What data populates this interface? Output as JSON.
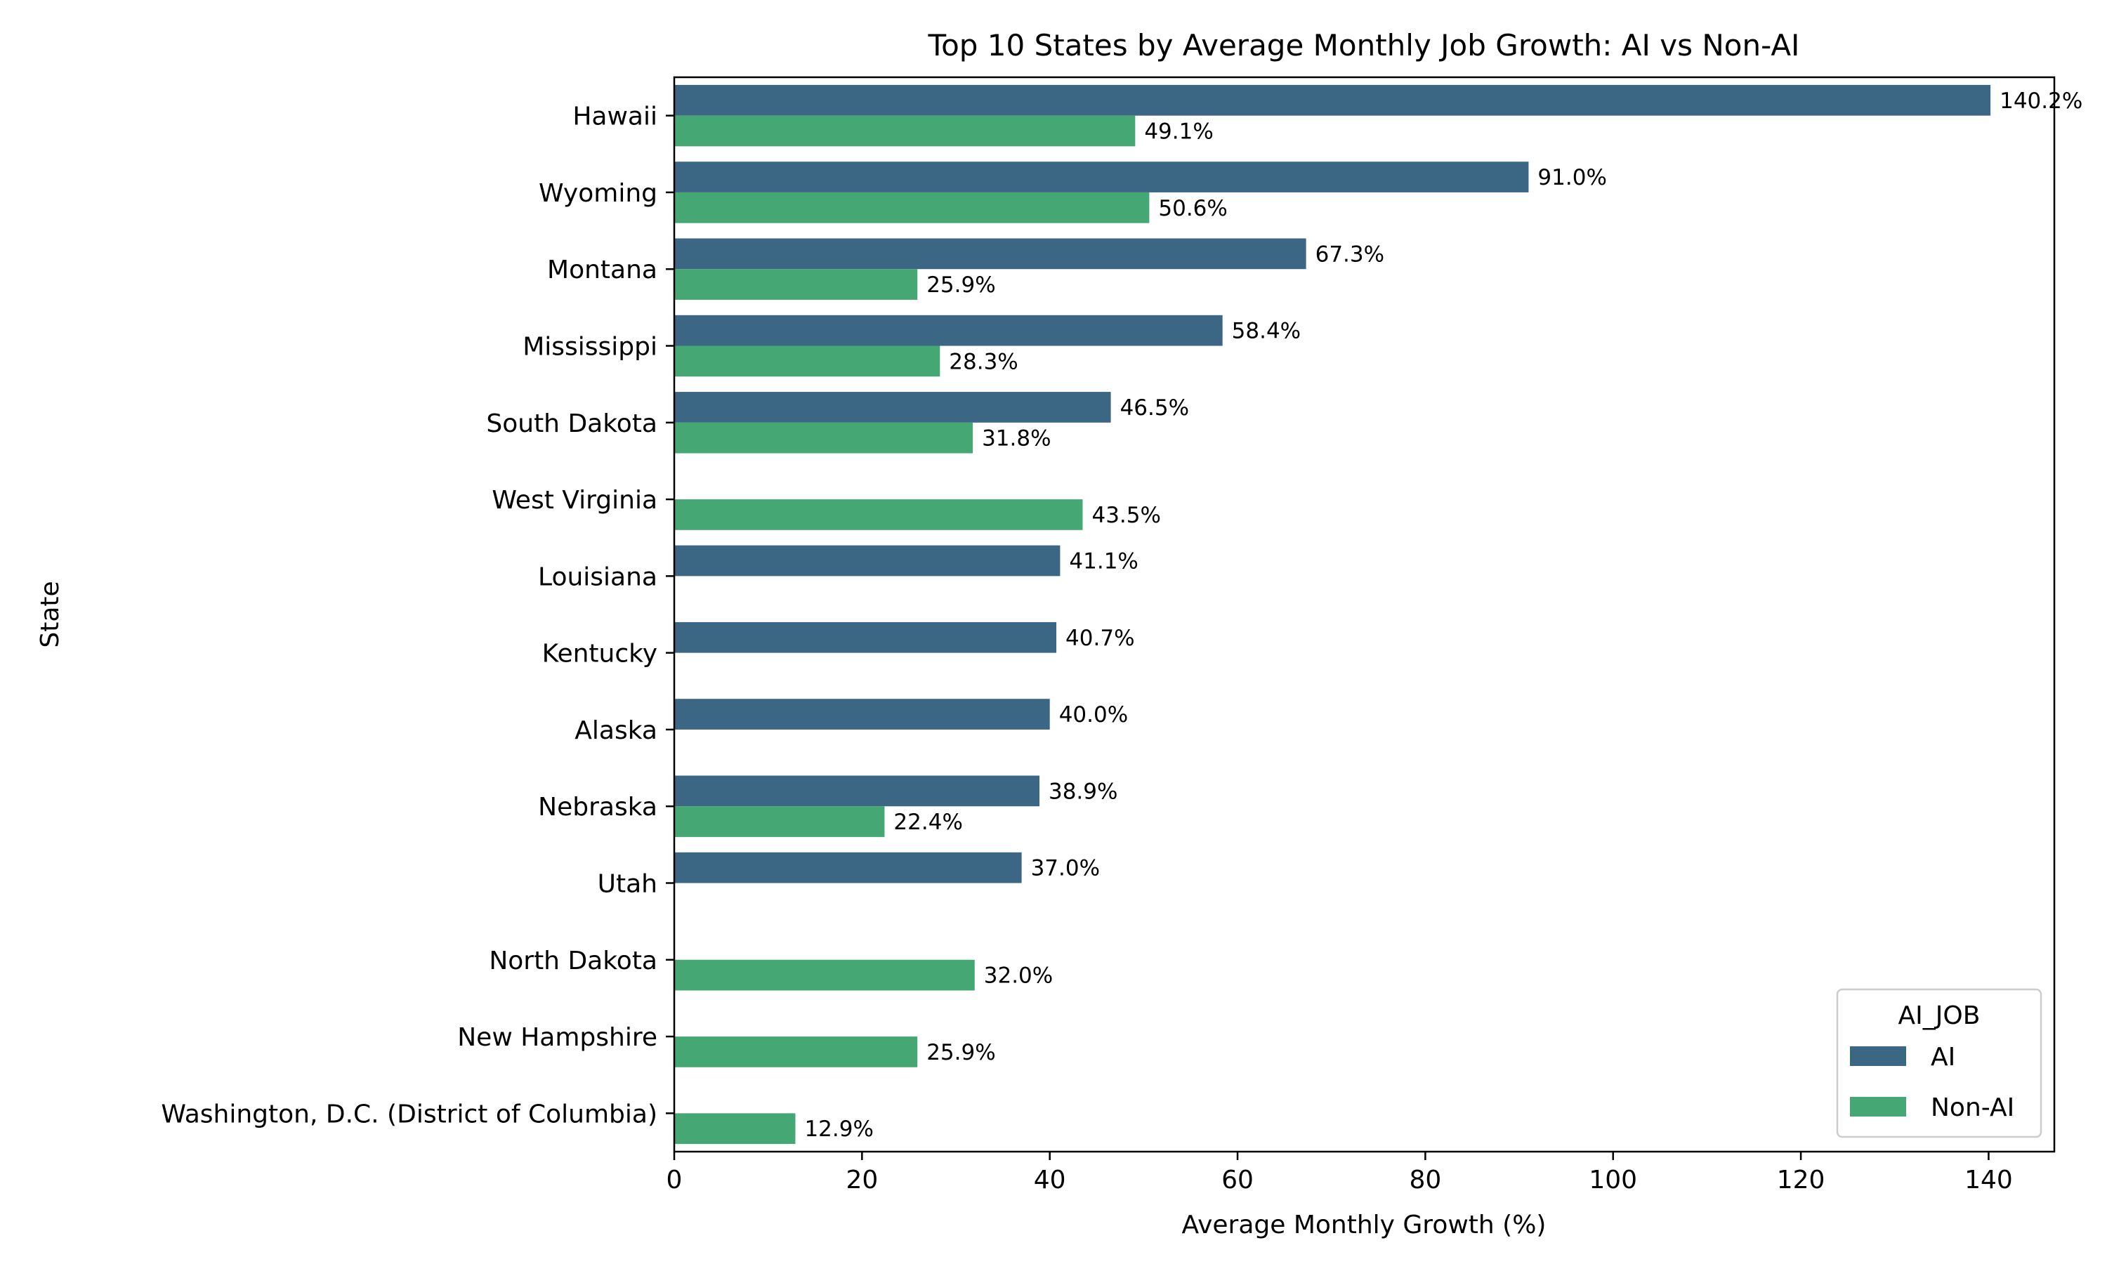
{
  "chart_data": {
    "type": "bar",
    "orientation": "horizontal",
    "title": "Top 10 States by Average Monthly Job Growth: AI vs Non-AI",
    "xlabel": "Average Monthly Growth (%)",
    "ylabel": "State",
    "xlim": [
      0,
      147
    ],
    "xticks": [
      0,
      20,
      40,
      60,
      80,
      100,
      120,
      140
    ],
    "grid": false,
    "legend_title": "AI_JOB",
    "legend_position": "bottom-right",
    "value_format_suffix": "%",
    "categories": [
      "Hawaii",
      "Wyoming",
      "Montana",
      "Mississippi",
      "South Dakota",
      "West Virginia",
      "Louisiana",
      "Kentucky",
      "Alaska",
      "Nebraska",
      "Utah",
      "North Dakota",
      "New Hampshire",
      "Washington, D.C. (District of Columbia)"
    ],
    "series": [
      {
        "name": "AI",
        "color": "#3b6684",
        "values": [
          140.2,
          91.0,
          67.3,
          58.4,
          46.5,
          null,
          41.1,
          40.7,
          40.0,
          38.9,
          37.0,
          null,
          null,
          null
        ],
        "labels": [
          "140.2%",
          "91.0%",
          "67.3%",
          "58.4%",
          "46.5%",
          null,
          "41.1%",
          "40.7%",
          "40.0%",
          "38.9%",
          "37.0%",
          null,
          null,
          null
        ]
      },
      {
        "name": "Non-AI",
        "color": "#45a874",
        "values": [
          49.1,
          50.6,
          25.9,
          28.3,
          31.8,
          43.5,
          null,
          null,
          null,
          22.4,
          null,
          32.0,
          25.9,
          12.9
        ],
        "labels": [
          "49.1%",
          "50.6%",
          "25.9%",
          "28.3%",
          "31.8%",
          "43.5%",
          null,
          null,
          null,
          "22.4%",
          null,
          "32.0%",
          "25.9%",
          "12.9%"
        ]
      }
    ]
  }
}
